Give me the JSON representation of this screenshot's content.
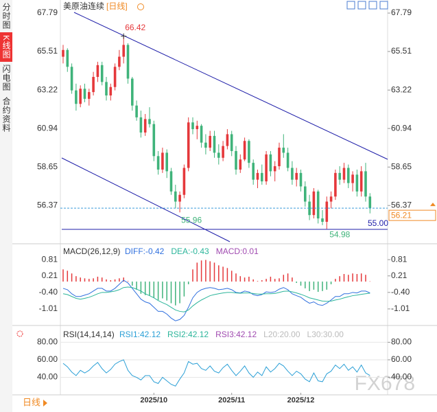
{
  "sidebar": [
    "分时图",
    "K线图",
    "闪电图",
    "合约资料"
  ],
  "period_button": "日线",
  "watermark": "FX678",
  "chart_data": [
    {
      "type": "candlestick",
      "title": "美原油连续",
      "subtitle": "[日线]",
      "up_color": "#e5383b",
      "down_color": "#3fb37a",
      "categories": [
        null,
        null,
        null,
        null,
        null,
        null,
        null,
        null,
        null,
        null,
        null,
        null,
        null,
        null,
        null,
        null,
        null,
        null,
        null,
        null,
        null,
        "2025/10",
        null,
        null,
        null,
        null,
        null,
        null,
        null,
        null,
        null,
        null,
        null,
        null,
        null,
        null,
        null,
        null,
        null,
        "2025/11",
        null,
        null,
        null,
        null,
        null,
        null,
        null,
        null,
        null,
        null,
        null,
        null,
        null,
        null,
        null,
        "2025/12",
        null,
        null,
        null,
        null,
        null,
        null,
        null,
        null,
        null,
        null,
        null,
        null,
        null,
        null,
        null,
        null
      ],
      "ohlc": [
        [
          65.2,
          65.9,
          64.8,
          65.6
        ],
        [
          65.6,
          65.7,
          64.3,
          64.6
        ],
        [
          64.6,
          64.8,
          63.0,
          63.2
        ],
        [
          63.2,
          63.6,
          62.0,
          62.4
        ],
        [
          62.4,
          63.5,
          62.2,
          63.3
        ],
        [
          63.3,
          63.6,
          62.5,
          62.7
        ],
        [
          62.7,
          63.3,
          62.3,
          63.1
        ],
        [
          63.1,
          64.3,
          62.9,
          64.0
        ],
        [
          64.0,
          64.9,
          63.7,
          64.7
        ],
        [
          64.7,
          64.9,
          63.5,
          63.7
        ],
        [
          63.7,
          64.0,
          62.6,
          62.9
        ],
        [
          62.9,
          63.6,
          62.6,
          63.4
        ],
        [
          63.4,
          64.8,
          63.2,
          64.6
        ],
        [
          64.6,
          65.6,
          64.4,
          65.2
        ],
        [
          65.2,
          66.42,
          64.8,
          65.9
        ],
        [
          65.9,
          66.0,
          63.6,
          63.9
        ],
        [
          63.9,
          64.0,
          62.0,
          62.3
        ],
        [
          62.3,
          62.6,
          61.4,
          61.6
        ],
        [
          61.6,
          62.0,
          60.4,
          60.7
        ],
        [
          60.7,
          61.8,
          60.5,
          61.5
        ],
        [
          61.5,
          62.2,
          61.0,
          61.2
        ],
        [
          61.2,
          61.4,
          59.0,
          59.3
        ],
        [
          59.3,
          59.6,
          58.2,
          58.5
        ],
        [
          58.5,
          59.8,
          58.3,
          59.5
        ],
        [
          59.5,
          59.7,
          58.0,
          58.4
        ],
        [
          58.4,
          58.6,
          57.0,
          57.2
        ],
        [
          57.2,
          57.6,
          56.2,
          56.6
        ],
        [
          56.6,
          57.2,
          55.96,
          57.0
        ],
        [
          57.0,
          58.8,
          56.8,
          58.6
        ],
        [
          58.6,
          61.6,
          58.4,
          61.3
        ],
        [
          61.3,
          61.6,
          60.6,
          60.9
        ],
        [
          60.9,
          61.4,
          60.3,
          61.1
        ],
        [
          61.1,
          61.2,
          59.8,
          60.1
        ],
        [
          60.1,
          60.6,
          59.4,
          59.8
        ],
        [
          59.8,
          60.8,
          59.6,
          60.5
        ],
        [
          60.5,
          60.8,
          59.2,
          59.5
        ],
        [
          59.5,
          60.0,
          58.8,
          59.2
        ],
        [
          59.2,
          60.2,
          59.0,
          59.9
        ],
        [
          59.9,
          60.9,
          59.7,
          60.6
        ],
        [
          60.6,
          60.8,
          59.3,
          59.6
        ],
        [
          59.6,
          59.9,
          58.2,
          58.5
        ],
        [
          58.5,
          59.4,
          58.3,
          59.1
        ],
        [
          59.1,
          60.4,
          59.0,
          60.2
        ],
        [
          60.2,
          60.3,
          58.6,
          58.9
        ],
        [
          58.9,
          59.1,
          57.6,
          57.9
        ],
        [
          57.9,
          58.5,
          57.4,
          58.3
        ],
        [
          58.3,
          58.8,
          57.6,
          57.8
        ],
        [
          57.8,
          59.6,
          57.6,
          59.4
        ],
        [
          59.4,
          59.6,
          58.1,
          58.4
        ],
        [
          58.4,
          59.0,
          57.8,
          58.7
        ],
        [
          58.7,
          60.1,
          58.5,
          59.8
        ],
        [
          59.8,
          60.6,
          59.2,
          59.5
        ],
        [
          59.5,
          59.8,
          58.4,
          58.6
        ],
        [
          58.6,
          59.0,
          57.6,
          57.9
        ],
        [
          57.9,
          58.6,
          57.5,
          58.3
        ],
        [
          58.3,
          58.5,
          57.2,
          57.5
        ],
        [
          57.5,
          57.8,
          56.3,
          56.6
        ],
        [
          56.6,
          57.0,
          55.5,
          55.8
        ],
        [
          55.8,
          57.4,
          55.6,
          57.2
        ],
        [
          57.2,
          57.3,
          55.3,
          55.6
        ],
        [
          55.6,
          56.1,
          55.2,
          55.4
        ],
        [
          55.4,
          56.9,
          54.98,
          56.6
        ],
        [
          56.6,
          57.2,
          56.2,
          56.9
        ],
        [
          56.9,
          58.5,
          56.7,
          58.3
        ],
        [
          58.3,
          58.7,
          57.6,
          57.9
        ],
        [
          57.9,
          58.9,
          57.7,
          58.6
        ],
        [
          58.6,
          58.8,
          57.4,
          57.7
        ],
        [
          57.7,
          58.4,
          57.2,
          58.2
        ],
        [
          58.2,
          58.5,
          56.9,
          57.2
        ],
        [
          57.2,
          58.7,
          56.9,
          58.4
        ],
        [
          58.4,
          58.9,
          56.6,
          56.9
        ],
        [
          56.9,
          57.1,
          55.9,
          56.21
        ]
      ],
      "ylim": [
        54.3,
        68.24
      ],
      "yticks": [
        67.79,
        65.51,
        63.22,
        60.94,
        58.65,
        56.37
      ],
      "high_label": "66.42",
      "low_labels": [
        "55.96",
        "54.98"
      ],
      "support_label": "55.00",
      "last_price": "56.21"
    },
    {
      "type": "macd",
      "title": "MACD(26,12,9)",
      "ylim": [
        -1.52,
        1.32
      ],
      "yticks": [
        0.81,
        0.21,
        {
          "value": -0.4,
          "label": "-0.40"
        },
        -1.01
      ],
      "series": [
        {
          "name": "DIFF:-0.42",
          "color": "#2f6fde",
          "values": [
            -0.25,
            -0.3,
            -0.45,
            -0.55,
            -0.55,
            -0.5,
            -0.45,
            -0.35,
            -0.25,
            -0.25,
            -0.35,
            -0.35,
            -0.25,
            -0.1,
            0.05,
            -0.05,
            -0.25,
            -0.45,
            -0.65,
            -0.75,
            -0.8,
            -0.95,
            -1.1,
            -1.1,
            -1.2,
            -1.35,
            -1.45,
            -1.4,
            -1.25,
            -0.95,
            -0.6,
            -0.4,
            -0.3,
            -0.25,
            -0.22,
            -0.25,
            -0.3,
            -0.28,
            -0.25,
            -0.3,
            -0.4,
            -0.42,
            -0.35,
            -0.38,
            -0.48,
            -0.52,
            -0.48,
            -0.38,
            -0.4,
            -0.38,
            -0.28,
            -0.22,
            -0.3,
            -0.45,
            -0.52,
            -0.58,
            -0.7,
            -0.8,
            -0.75,
            -0.85,
            -0.88,
            -0.8,
            -0.68,
            -0.55,
            -0.55,
            -0.45,
            -0.45,
            -0.4,
            -0.42,
            -0.35,
            -0.35,
            -0.42
          ]
        },
        {
          "name": "DEA:-0.43",
          "color": "#2bb59a",
          "values": [
            -0.45,
            -0.48,
            -0.55,
            -0.62,
            -0.65,
            -0.62,
            -0.58,
            -0.52,
            -0.45,
            -0.4,
            -0.4,
            -0.38,
            -0.35,
            -0.3,
            -0.22,
            -0.2,
            -0.22,
            -0.28,
            -0.35,
            -0.45,
            -0.52,
            -0.6,
            -0.7,
            -0.78,
            -0.85,
            -0.95,
            -1.05,
            -1.1,
            -1.12,
            -1.05,
            -0.9,
            -0.78,
            -0.68,
            -0.6,
            -0.52,
            -0.48,
            -0.45,
            -0.42,
            -0.4,
            -0.4,
            -0.42,
            -0.43,
            -0.42,
            -0.42,
            -0.44,
            -0.46,
            -0.46,
            -0.45,
            -0.45,
            -0.44,
            -0.4,
            -0.36,
            -0.35,
            -0.38,
            -0.42,
            -0.47,
            -0.53,
            -0.6,
            -0.64,
            -0.68,
            -0.72,
            -0.73,
            -0.72,
            -0.68,
            -0.65,
            -0.6,
            -0.56,
            -0.52,
            -0.5,
            -0.47,
            -0.45,
            -0.43
          ]
        },
        {
          "name": "MACD:0.01",
          "color": "#a04ab0",
          "up_color": "#e5383b",
          "down_color": "#3fb37a",
          "values": [
            0.45,
            0.4,
            0.3,
            0.2,
            0.15,
            0.12,
            0.1,
            0.12,
            0.18,
            0.15,
            0.08,
            0.05,
            0.08,
            0.12,
            0.15,
            0.02,
            -0.15,
            -0.3,
            -0.45,
            -0.5,
            -0.52,
            -0.6,
            -0.68,
            -0.62,
            -0.7,
            -0.8,
            -0.88,
            -0.8,
            -0.55,
            -0.1,
            0.45,
            0.7,
            0.78,
            0.8,
            0.75,
            0.7,
            0.6,
            0.55,
            0.5,
            0.4,
            0.3,
            0.2,
            0.15,
            0.18,
            0.08,
            0.02,
            0.05,
            0.1,
            0.18,
            0.1,
            0.12,
            0.25,
            0.3,
            0.15,
            -0.05,
            -0.15,
            -0.25,
            -0.35,
            -0.3,
            -0.38,
            -0.35,
            -0.3,
            -0.1,
            0.1,
            0.2,
            0.28,
            0.25,
            0.3,
            0.28,
            0.3,
            0.25,
            0.01
          ]
        }
      ]
    },
    {
      "type": "rsi",
      "title": "RSI(14,14,14)",
      "ylim": [
        22.4,
        96
      ],
      "yticks": [
        {
          "value": 80,
          "label": "80.00"
        },
        {
          "value": 60,
          "label": "60.00"
        },
        {
          "value": 40,
          "label": "40.00"
        }
      ],
      "series": [
        {
          "name": "RSI1:42.12",
          "color": "#2a9fd6",
          "values": [
            56,
            52,
            46,
            42,
            48,
            45,
            48,
            53,
            57,
            50,
            45,
            49,
            55,
            58,
            60,
            48,
            42,
            40,
            37,
            42,
            42,
            35,
            33,
            40,
            36,
            32,
            30,
            38,
            45,
            58,
            55,
            56,
            50,
            48,
            53,
            47,
            45,
            51,
            55,
            48,
            42,
            47,
            53,
            45,
            40,
            46,
            42,
            52,
            46,
            50,
            56,
            53,
            47,
            42,
            47,
            44,
            38,
            35,
            45,
            36,
            35,
            44,
            47,
            54,
            50,
            55,
            48,
            52,
            46,
            54,
            45,
            42.12
          ]
        },
        {
          "name": "RSI2:42.12",
          "color": "#2bb59a"
        },
        {
          "name": "RSI3:42.12",
          "color": "#a04ab0"
        },
        {
          "name": "L20:20.00",
          "color": "#bbbbbb"
        },
        {
          "name": "L30:30.00",
          "color": "#bbbbbb"
        }
      ]
    }
  ]
}
